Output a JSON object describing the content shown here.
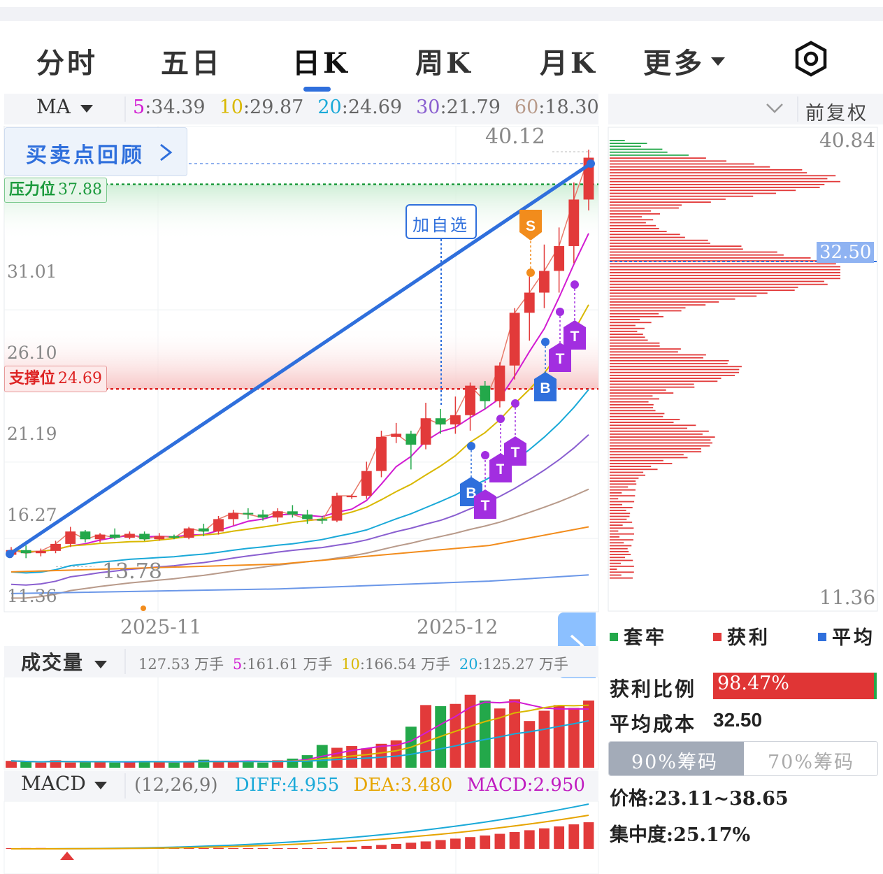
{
  "tabs": [
    {
      "label": "分时",
      "active": false
    },
    {
      "label": "五日",
      "active": false
    },
    {
      "label": "日K",
      "active": true
    },
    {
      "label": "周K",
      "active": false
    },
    {
      "label": "月K",
      "active": false
    },
    {
      "label": "更多",
      "active": false
    }
  ],
  "icons": {
    "settings": "hexagon-gear-icon",
    "more": "triangle-down-icon",
    "next": "chevron-right-icon",
    "collapse": "chevron-down-icon"
  },
  "ma_bar": {
    "label": "MA",
    "items": [
      {
        "period": "5",
        "value": "34.39",
        "color": "#d21cd2"
      },
      {
        "period": "10",
        "value": "29.87",
        "color": "#d9b800"
      },
      {
        "period": "20",
        "value": "24.69",
        "color": "#1aa9d8"
      },
      {
        "period": "30",
        "value": "21.79",
        "color": "#8a5fd0"
      },
      {
        "period": "60",
        "value": "18.30",
        "color": "#b89a8a"
      }
    ],
    "adjust": "前复权"
  },
  "main_chart": {
    "review_button": "买卖点回顾",
    "add_watch": "加自选",
    "resistance_label": "压力位",
    "resistance_value": "37.88",
    "support_label": "支撑位",
    "support_value": "24.69",
    "high_label": "40.12",
    "low_label": "13.78",
    "y_ticks": [
      "31.01",
      "26.10",
      "21.19",
      "16.27",
      "11.36"
    ],
    "x_ticks": [
      "2025-11",
      "2025-12"
    ],
    "signals": {
      "buy": "B",
      "sell": "S",
      "t": "T"
    }
  },
  "chart_data": {
    "type": "candlestick",
    "ylim": [
      11.36,
      40.84
    ],
    "resistance": 37.88,
    "support": 24.69,
    "candles": [
      {
        "o": 14.0,
        "h": 14.5,
        "l": 13.8,
        "c": 14.3
      },
      {
        "o": 14.3,
        "h": 14.6,
        "l": 13.78,
        "c": 14.1
      },
      {
        "o": 14.1,
        "h": 14.4,
        "l": 13.9,
        "c": 14.25
      },
      {
        "o": 14.25,
        "h": 14.9,
        "l": 14.1,
        "c": 14.7
      },
      {
        "o": 14.7,
        "h": 15.8,
        "l": 14.5,
        "c": 15.5
      },
      {
        "o": 15.5,
        "h": 15.6,
        "l": 14.8,
        "c": 15.0
      },
      {
        "o": 15.0,
        "h": 15.4,
        "l": 14.8,
        "c": 15.3
      },
      {
        "o": 15.3,
        "h": 15.7,
        "l": 15.0,
        "c": 15.1
      },
      {
        "o": 15.1,
        "h": 15.5,
        "l": 15.0,
        "c": 15.35
      },
      {
        "o": 15.35,
        "h": 15.5,
        "l": 14.9,
        "c": 15.0
      },
      {
        "o": 15.0,
        "h": 15.4,
        "l": 14.9,
        "c": 15.2
      },
      {
        "o": 15.2,
        "h": 15.3,
        "l": 15.0,
        "c": 15.1
      },
      {
        "o": 15.1,
        "h": 15.8,
        "l": 15.0,
        "c": 15.7
      },
      {
        "o": 15.7,
        "h": 16.0,
        "l": 15.2,
        "c": 15.5
      },
      {
        "o": 15.5,
        "h": 16.5,
        "l": 15.3,
        "c": 16.3
      },
      {
        "o": 16.3,
        "h": 16.9,
        "l": 15.9,
        "c": 16.7
      },
      {
        "o": 16.7,
        "h": 17.0,
        "l": 16.3,
        "c": 16.6
      },
      {
        "o": 16.6,
        "h": 16.9,
        "l": 16.2,
        "c": 16.4
      },
      {
        "o": 16.4,
        "h": 17.0,
        "l": 16.1,
        "c": 16.8
      },
      {
        "o": 16.8,
        "h": 17.2,
        "l": 16.4,
        "c": 16.6
      },
      {
        "o": 16.6,
        "h": 16.9,
        "l": 16.0,
        "c": 16.3
      },
      {
        "o": 16.3,
        "h": 16.5,
        "l": 16.0,
        "c": 16.2
      },
      {
        "o": 16.2,
        "h": 18.0,
        "l": 16.1,
        "c": 17.8
      },
      {
        "o": 17.8,
        "h": 17.9,
        "l": 17.6,
        "c": 17.8
      },
      {
        "o": 17.8,
        "h": 20.0,
        "l": 17.6,
        "c": 19.4
      },
      {
        "o": 19.4,
        "h": 22.0,
        "l": 19.0,
        "c": 21.6
      },
      {
        "o": 21.6,
        "h": 22.5,
        "l": 21.2,
        "c": 21.8
      },
      {
        "o": 21.8,
        "h": 22.0,
        "l": 19.5,
        "c": 21.1
      },
      {
        "o": 21.1,
        "h": 23.8,
        "l": 20.8,
        "c": 22.8
      },
      {
        "o": 22.8,
        "h": 23.4,
        "l": 21.8,
        "c": 22.4
      },
      {
        "o": 22.4,
        "h": 24.2,
        "l": 21.8,
        "c": 23.0
      },
      {
        "o": 23.0,
        "h": 25.1,
        "l": 22.0,
        "c": 24.9
      },
      {
        "o": 24.9,
        "h": 25.2,
        "l": 23.4,
        "c": 23.9
      },
      {
        "o": 23.9,
        "h": 26.4,
        "l": 23.5,
        "c": 26.2
      },
      {
        "o": 26.2,
        "h": 29.9,
        "l": 25.3,
        "c": 29.6
      },
      {
        "o": 29.6,
        "h": 32.4,
        "l": 27.8,
        "c": 30.9
      },
      {
        "o": 30.9,
        "h": 34.0,
        "l": 29.9,
        "c": 32.3
      },
      {
        "o": 32.3,
        "h": 35.1,
        "l": 30.9,
        "c": 33.9
      },
      {
        "o": 33.9,
        "h": 38.0,
        "l": 32.8,
        "c": 36.9
      },
      {
        "o": 36.9,
        "h": 40.12,
        "l": 36.2,
        "c": 39.6
      }
    ],
    "ma_final": {
      "MA5": 34.39,
      "MA10": 29.87,
      "MA20": 24.69,
      "MA30": 21.79,
      "MA60": 18.3
    },
    "volume_ma": {
      "MA5": 161.61,
      "MA10": 166.54,
      "MA20": 125.27
    },
    "volume_current": 127.53,
    "macd": {
      "DIFF": 4.955,
      "DEA": 3.48,
      "MACD": 2.95
    }
  },
  "volume_bar": {
    "label": "成交量",
    "value": "127.53",
    "unit": "万手",
    "ma5": "161.61",
    "ma10": "166.54",
    "ma20": "125.27"
  },
  "macd_bar": {
    "label": "MACD",
    "params": "(12,26,9)",
    "diff": "DIFF:4.955",
    "dea": "DEA:3.480",
    "macd": "MACD:2.950"
  },
  "chip_panel": {
    "top_price": "40.84",
    "avg_price_tag": "32.50",
    "bottom_price": "11.36",
    "legend": [
      {
        "label": "套牢",
        "color": "#23a84a"
      },
      {
        "label": "获利",
        "color": "#e23a3a"
      },
      {
        "label": "平均",
        "color": "#2f6fdc"
      }
    ],
    "profit_ratio_label": "获利比例",
    "profit_ratio": "98.47%",
    "avg_cost_label": "平均成本",
    "avg_cost": "32.50",
    "chip_tabs": [
      "90%筹码",
      "70%筹码"
    ],
    "price_range": "价格:23.11~38.65",
    "concentration": "集中度:25.17%"
  }
}
